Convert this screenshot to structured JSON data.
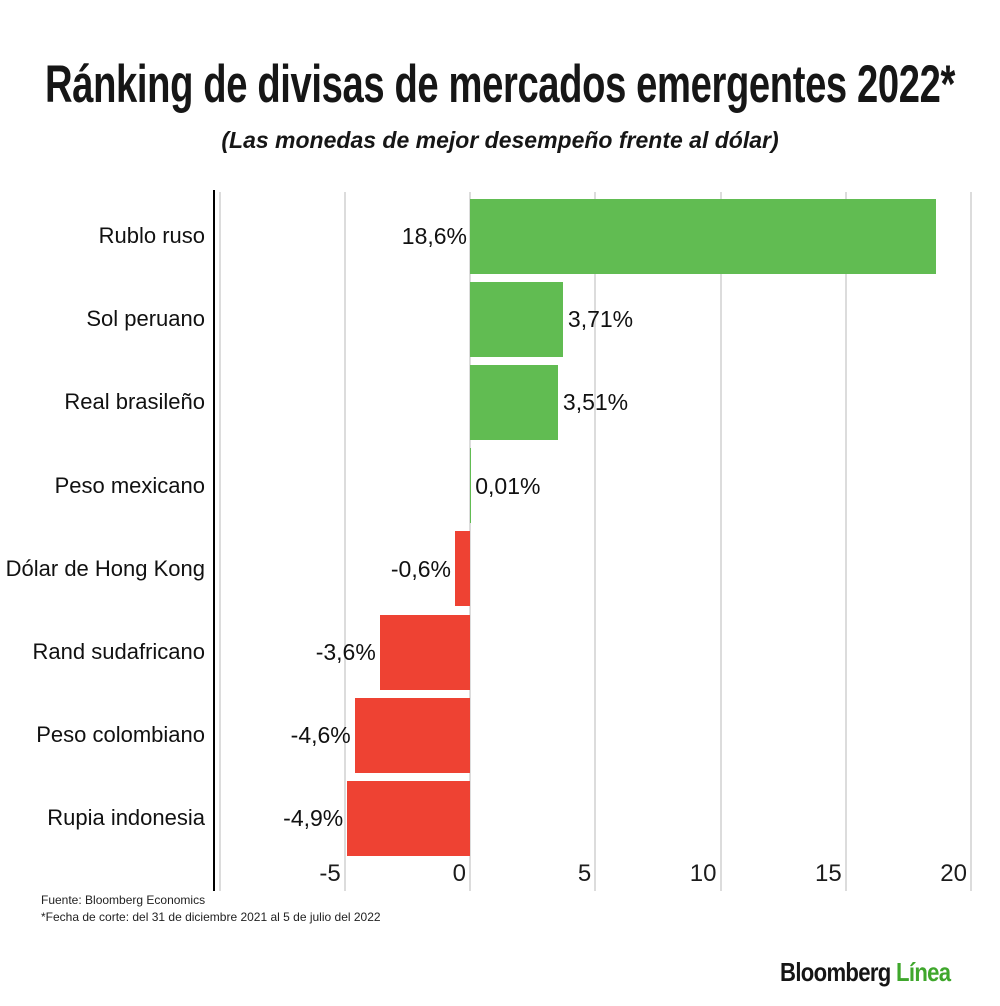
{
  "title": "Ránking de divisas de mercados emergentes 2022*",
  "subtitle": "(Las monedas de mejor desempeño frente al dólar)",
  "source": {
    "line1": "Fuente: Bloomberg Economics",
    "line2": "*Fecha de corte: del 31 de diciembre 2021 al 5 de julio del 2022"
  },
  "logo": {
    "part1": "Bloomberg",
    "part2": "Línea"
  },
  "colors": {
    "positive_bar": "#61BC52",
    "negative_bar": "#EE4233",
    "gridline": "#DCDCDC",
    "axis_line": "#000000",
    "logo_black": "#161616",
    "logo_green": "#3FA72C",
    "text": "#111111"
  },
  "chart_data": {
    "type": "bar",
    "orientation": "horizontal",
    "unit": "%",
    "title": "Ránking de divisas de mercados emergentes 2022*",
    "subtitle": "(Las monedas de mejor desempeño frente al dólar)",
    "xlabel": "",
    "ylabel": "",
    "grid": true,
    "legend": false,
    "xlim": [
      -10,
      20
    ],
    "gridline_values": [
      -10,
      -5,
      0,
      5,
      10,
      15,
      20
    ],
    "x_ticks": [
      {
        "value": -5,
        "label": "-5"
      },
      {
        "value": 0,
        "label": "0"
      },
      {
        "value": 5,
        "label": "5"
      },
      {
        "value": 10,
        "label": "10"
      },
      {
        "value": 15,
        "label": "15"
      },
      {
        "value": 20,
        "label": "20"
      }
    ],
    "categories": [
      "Rublo ruso",
      "Sol peruano",
      "Real brasileño",
      "Peso mexicano",
      "Dólar de Hong Kong",
      "Rand sudafricano",
      "Peso colombiano",
      "Rupia indonesia"
    ],
    "values": [
      18.6,
      3.71,
      3.51,
      0.01,
      -0.6,
      -3.6,
      -4.6,
      -4.9
    ],
    "value_labels": [
      "18,6%",
      "3,71%",
      "3,51%",
      "0,01%",
      "-0,6%",
      "-3,6%",
      "-4,6%",
      "-4,9%"
    ]
  }
}
